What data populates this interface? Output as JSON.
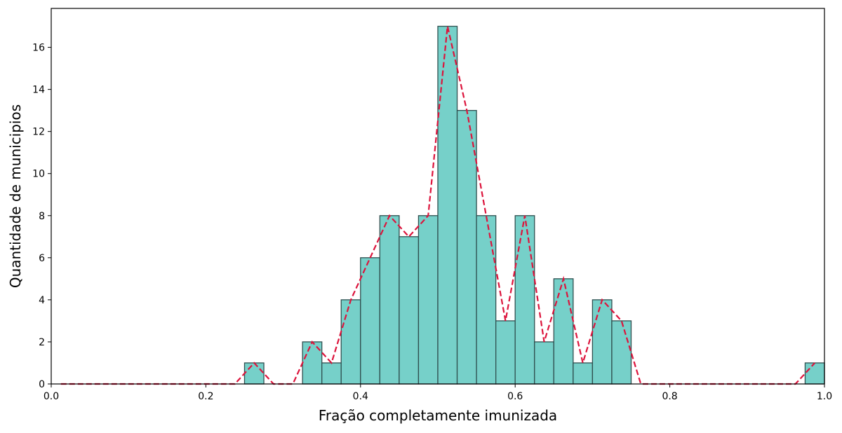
{
  "chart_data": {
    "type": "histogram",
    "xlabel": "Fração completamente imunizada",
    "ylabel": "Quantidade de municipios",
    "bins": [
      0,
      0.025,
      0.05,
      0.075,
      0.1,
      0.125,
      0.15,
      0.175,
      0.2,
      0.225,
      0.25,
      0.275,
      0.3,
      0.325,
      0.35,
      0.375,
      0.4,
      0.425,
      0.45,
      0.475,
      0.5,
      0.525,
      0.55,
      0.575,
      0.6,
      0.625,
      0.65,
      0.675,
      0.7,
      0.725,
      0.75,
      0.775,
      0.8,
      0.825,
      0.85,
      0.875,
      0.9,
      0.925,
      0.95,
      0.975,
      1
    ],
    "values": [
      0,
      0,
      0,
      0,
      0,
      0,
      0,
      0,
      0,
      0,
      1,
      0,
      0,
      2,
      1,
      4,
      6,
      8,
      7,
      8,
      17,
      13,
      8,
      3,
      8,
      2,
      5,
      1,
      4,
      3,
      0,
      0,
      0,
      0,
      0,
      0,
      0,
      0,
      0,
      1
    ],
    "color": "#76d0c9",
    "edgecolor": "#2f4f4f",
    "line": {
      "color": "#dc143c",
      "x": [
        0.0125,
        0.0375,
        0.0625,
        0.0875,
        0.1125,
        0.1375,
        0.1625,
        0.1875,
        0.2125,
        0.2375,
        0.2625,
        0.2875,
        0.3125,
        0.3375,
        0.3625,
        0.3875,
        0.4125,
        0.4375,
        0.4625,
        0.4875,
        0.5125,
        0.5375,
        0.5625,
        0.5875,
        0.6125,
        0.6375,
        0.6625,
        0.6875,
        0.7125,
        0.7375,
        0.7625,
        0.7875,
        0.8125,
        0.8375,
        0.8625,
        0.8875,
        0.9125,
        0.9375,
        0.9625,
        0.9875
      ],
      "values": [
        0,
        0,
        0,
        0,
        0,
        0,
        0,
        0,
        0,
        0,
        1,
        0,
        0,
        2,
        1,
        4,
        6,
        8,
        7,
        8,
        17,
        13,
        8,
        3,
        8,
        2,
        5,
        1,
        4,
        3,
        0,
        0,
        0,
        0,
        0,
        0,
        0,
        0,
        0,
        1
      ]
    },
    "xlim": [
      0,
      1
    ],
    "xticks": [
      {
        "value": 0,
        "label": "0.0"
      },
      0.2,
      0.4,
      0.6,
      0.8,
      {
        "value": 1,
        "label": "1.0"
      }
    ],
    "ylim": [
      0,
      17.85
    ],
    "yticks": [
      0,
      2,
      4,
      6,
      8,
      10,
      12,
      14,
      16
    ]
  }
}
